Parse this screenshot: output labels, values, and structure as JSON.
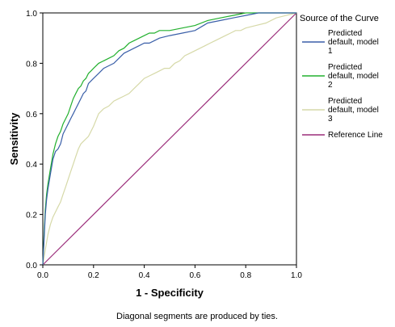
{
  "chart_data": {
    "type": "line",
    "title": "",
    "xlabel": "1 - Specificity",
    "ylabel": "Sensitivity",
    "xlim": [
      0,
      1
    ],
    "ylim": [
      0,
      1
    ],
    "x_ticks": [
      "0.0",
      "0.2",
      "0.4",
      "0.6",
      "0.8",
      "1.0"
    ],
    "y_ticks": [
      "0.0",
      "0.2",
      "0.4",
      "0.6",
      "0.8",
      "1.0"
    ],
    "grid": false,
    "legend_title": "Source of the Curve",
    "legend_position": "right",
    "footnote": "Diagonal segments are produced by ties.",
    "series": [
      {
        "name": "Predicted default, model 1",
        "legend_lines": [
          "Predicted",
          "default, model",
          "1"
        ],
        "color": "#3a5fa8",
        "points": [
          [
            0,
            0
          ],
          [
            0.005,
            0.1
          ],
          [
            0.01,
            0.2
          ],
          [
            0.015,
            0.26
          ],
          [
            0.02,
            0.3
          ],
          [
            0.03,
            0.36
          ],
          [
            0.04,
            0.42
          ],
          [
            0.05,
            0.45
          ],
          [
            0.06,
            0.46
          ],
          [
            0.07,
            0.48
          ],
          [
            0.08,
            0.52
          ],
          [
            0.09,
            0.54
          ],
          [
            0.1,
            0.56
          ],
          [
            0.11,
            0.58
          ],
          [
            0.12,
            0.6
          ],
          [
            0.13,
            0.62
          ],
          [
            0.14,
            0.64
          ],
          [
            0.15,
            0.66
          ],
          [
            0.16,
            0.68
          ],
          [
            0.17,
            0.69
          ],
          [
            0.18,
            0.72
          ],
          [
            0.19,
            0.73
          ],
          [
            0.2,
            0.74
          ],
          [
            0.22,
            0.76
          ],
          [
            0.24,
            0.78
          ],
          [
            0.26,
            0.79
          ],
          [
            0.28,
            0.8
          ],
          [
            0.3,
            0.82
          ],
          [
            0.32,
            0.84
          ],
          [
            0.34,
            0.85
          ],
          [
            0.36,
            0.86
          ],
          [
            0.38,
            0.87
          ],
          [
            0.4,
            0.88
          ],
          [
            0.42,
            0.88
          ],
          [
            0.44,
            0.89
          ],
          [
            0.46,
            0.9
          ],
          [
            0.5,
            0.91
          ],
          [
            0.55,
            0.92
          ],
          [
            0.6,
            0.93
          ],
          [
            0.65,
            0.96
          ],
          [
            0.7,
            0.97
          ],
          [
            0.75,
            0.98
          ],
          [
            0.8,
            0.99
          ],
          [
            0.85,
            1.0
          ],
          [
            0.9,
            1.0
          ],
          [
            0.95,
            1.0
          ],
          [
            1.0,
            1.0
          ]
        ]
      },
      {
        "name": "Predicted default, model 2",
        "legend_lines": [
          "Predicted",
          "default, model",
          "2"
        ],
        "color": "#22b02e",
        "points": [
          [
            0,
            0
          ],
          [
            0.005,
            0.12
          ],
          [
            0.01,
            0.22
          ],
          [
            0.015,
            0.28
          ],
          [
            0.02,
            0.32
          ],
          [
            0.03,
            0.38
          ],
          [
            0.04,
            0.44
          ],
          [
            0.05,
            0.48
          ],
          [
            0.06,
            0.51
          ],
          [
            0.07,
            0.53
          ],
          [
            0.08,
            0.56
          ],
          [
            0.09,
            0.58
          ],
          [
            0.1,
            0.6
          ],
          [
            0.11,
            0.63
          ],
          [
            0.12,
            0.66
          ],
          [
            0.13,
            0.68
          ],
          [
            0.14,
            0.7
          ],
          [
            0.15,
            0.71
          ],
          [
            0.16,
            0.73
          ],
          [
            0.17,
            0.74
          ],
          [
            0.18,
            0.76
          ],
          [
            0.19,
            0.77
          ],
          [
            0.2,
            0.78
          ],
          [
            0.22,
            0.8
          ],
          [
            0.24,
            0.81
          ],
          [
            0.26,
            0.82
          ],
          [
            0.28,
            0.83
          ],
          [
            0.3,
            0.85
          ],
          [
            0.32,
            0.86
          ],
          [
            0.34,
            0.88
          ],
          [
            0.36,
            0.89
          ],
          [
            0.38,
            0.9
          ],
          [
            0.4,
            0.91
          ],
          [
            0.42,
            0.92
          ],
          [
            0.44,
            0.92
          ],
          [
            0.46,
            0.93
          ],
          [
            0.5,
            0.93
          ],
          [
            0.55,
            0.94
          ],
          [
            0.6,
            0.95
          ],
          [
            0.65,
            0.97
          ],
          [
            0.7,
            0.98
          ],
          [
            0.75,
            0.99
          ],
          [
            0.8,
            1.0
          ],
          [
            0.85,
            1.0
          ],
          [
            0.9,
            1.0
          ],
          [
            0.95,
            1.0
          ],
          [
            1.0,
            1.0
          ]
        ]
      },
      {
        "name": "Predicted default, model 3",
        "legend_lines": [
          "Predicted",
          "default, model",
          "3"
        ],
        "color": "#d6d9a8",
        "points": [
          [
            0,
            0
          ],
          [
            0.01,
            0.06
          ],
          [
            0.02,
            0.12
          ],
          [
            0.03,
            0.16
          ],
          [
            0.04,
            0.19
          ],
          [
            0.05,
            0.21
          ],
          [
            0.06,
            0.23
          ],
          [
            0.07,
            0.25
          ],
          [
            0.08,
            0.28
          ],
          [
            0.09,
            0.31
          ],
          [
            0.1,
            0.34
          ],
          [
            0.11,
            0.37
          ],
          [
            0.12,
            0.4
          ],
          [
            0.13,
            0.43
          ],
          [
            0.14,
            0.46
          ],
          [
            0.15,
            0.48
          ],
          [
            0.16,
            0.49
          ],
          [
            0.18,
            0.51
          ],
          [
            0.2,
            0.55
          ],
          [
            0.22,
            0.6
          ],
          [
            0.24,
            0.62
          ],
          [
            0.26,
            0.63
          ],
          [
            0.28,
            0.65
          ],
          [
            0.3,
            0.66
          ],
          [
            0.32,
            0.67
          ],
          [
            0.34,
            0.68
          ],
          [
            0.36,
            0.7
          ],
          [
            0.38,
            0.72
          ],
          [
            0.4,
            0.74
          ],
          [
            0.42,
            0.75
          ],
          [
            0.44,
            0.76
          ],
          [
            0.46,
            0.77
          ],
          [
            0.48,
            0.78
          ],
          [
            0.5,
            0.78
          ],
          [
            0.52,
            0.8
          ],
          [
            0.54,
            0.81
          ],
          [
            0.56,
            0.83
          ],
          [
            0.58,
            0.84
          ],
          [
            0.6,
            0.85
          ],
          [
            0.62,
            0.86
          ],
          [
            0.64,
            0.87
          ],
          [
            0.66,
            0.88
          ],
          [
            0.68,
            0.89
          ],
          [
            0.7,
            0.9
          ],
          [
            0.72,
            0.91
          ],
          [
            0.74,
            0.92
          ],
          [
            0.76,
            0.93
          ],
          [
            0.78,
            0.93
          ],
          [
            0.8,
            0.94
          ],
          [
            0.84,
            0.95
          ],
          [
            0.88,
            0.96
          ],
          [
            0.92,
            0.98
          ],
          [
            0.96,
            0.99
          ],
          [
            1.0,
            1.0
          ]
        ]
      },
      {
        "name": "Reference Line",
        "legend_lines": [
          "Reference Line"
        ],
        "color": "#9b2d7a",
        "points": [
          [
            0,
            0
          ],
          [
            1,
            1
          ]
        ]
      }
    ]
  }
}
